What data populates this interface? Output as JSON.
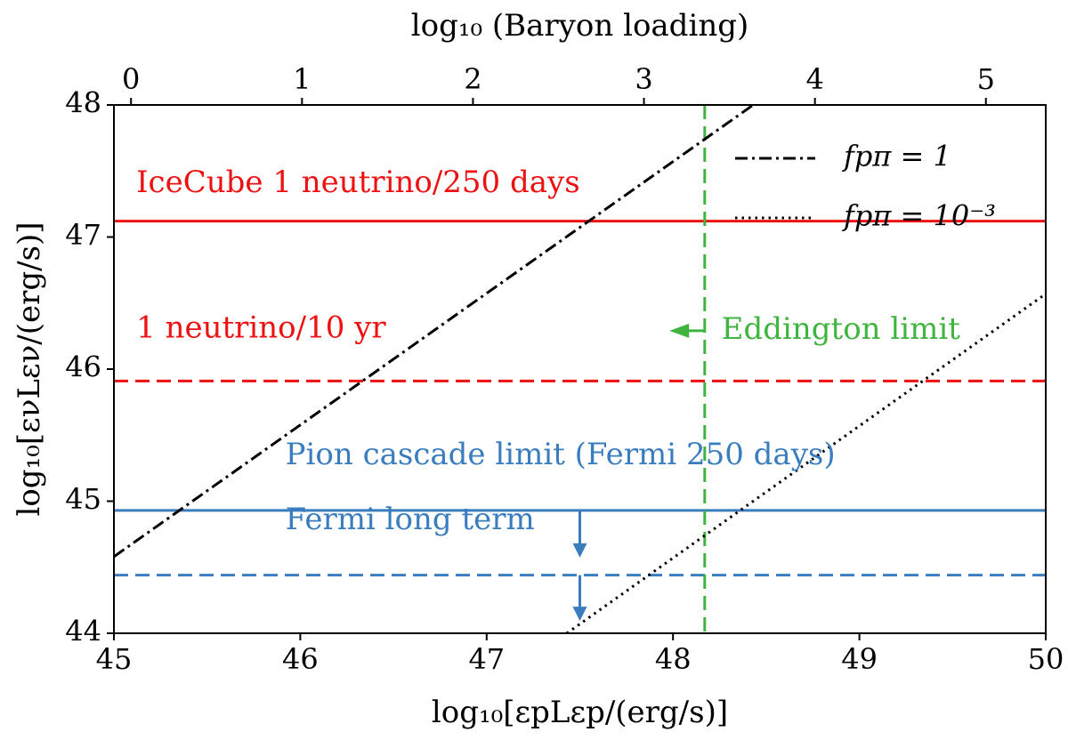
{
  "chart_data": {
    "type": "line",
    "xlabel": "log₁₀[εpLεp/(erg/s)]",
    "ylabel": "log₁₀[ενLεν/(erg/s)]",
    "top_xlabel": "log₁₀ (Baryon loading)",
    "xlim": [
      45,
      50
    ],
    "ylim": [
      44,
      48
    ],
    "top_xlim": [
      -0.1,
      5.35
    ],
    "xticks": [
      "45",
      "46",
      "47",
      "48",
      "49",
      "50"
    ],
    "yticks": [
      "44",
      "45",
      "46",
      "47",
      "48"
    ],
    "top_xticks": [
      "0",
      "1",
      "2",
      "3",
      "4",
      "5"
    ],
    "legend_position": "top-right",
    "series": [
      {
        "name": "fpπ = 1",
        "style": "dashdot",
        "color": "#000000",
        "x": [
          45.0,
          48.43
        ],
        "y": [
          44.58,
          48.0
        ]
      },
      {
        "name": "fpπ = 10⁻³",
        "style": "dotted",
        "color": "#000000",
        "x": [
          47.43,
          50.0
        ],
        "y": [
          44.0,
          46.57
        ]
      }
    ],
    "hlines": [
      {
        "id": "icecube-250",
        "y": 47.12,
        "style": "solid",
        "color": "#ee1111"
      },
      {
        "id": "icecube-10yr",
        "y": 45.91,
        "style": "dashed",
        "color": "#ee1111"
      },
      {
        "id": "pion-cascade",
        "y": 44.93,
        "style": "solid",
        "color": "#3a7dbf"
      },
      {
        "id": "fermi-long",
        "y": 44.44,
        "style": "dashed",
        "color": "#3a7dbf"
      }
    ],
    "vlines": [
      {
        "id": "eddington",
        "x": 48.17,
        "style": "dashed",
        "color": "#3fb43f"
      }
    ],
    "annotations": [
      {
        "id": "icecube-250",
        "text": "IceCube 1 neutrino/250 days",
        "x": 45.12,
        "y": 47.4,
        "color": "#ee1111"
      },
      {
        "id": "icecube-10yr",
        "text": "1 neutrino/10 yr",
        "x": 45.12,
        "y": 46.3,
        "color": "#ee1111"
      },
      {
        "id": "pion-cascade",
        "text": "Pion cascade limit (Fermi 250 days)",
        "x": 45.92,
        "y": 45.34,
        "color": "#3a7dbf"
      },
      {
        "id": "fermi-long",
        "text": "Fermi long term",
        "x": 45.92,
        "y": 44.85,
        "color": "#3a7dbf"
      },
      {
        "id": "eddington",
        "text": "Eddington limit",
        "x": 48.26,
        "y": 46.29,
        "color": "#3fb43f"
      }
    ],
    "arrows": [
      {
        "id": "pion-cascade-arrow",
        "x": 47.5,
        "from_y": 44.93,
        "to_y": 44.6,
        "color": "#3a7dbf",
        "direction": "down"
      },
      {
        "id": "fermi-long-arrow",
        "x": 47.5,
        "from_y": 44.44,
        "to_y": 44.12,
        "color": "#3a7dbf",
        "direction": "down"
      },
      {
        "id": "eddington-arrow",
        "x_from": 48.17,
        "x_to": 48.0,
        "y": 46.29,
        "color": "#3fb43f",
        "direction": "left"
      }
    ]
  }
}
